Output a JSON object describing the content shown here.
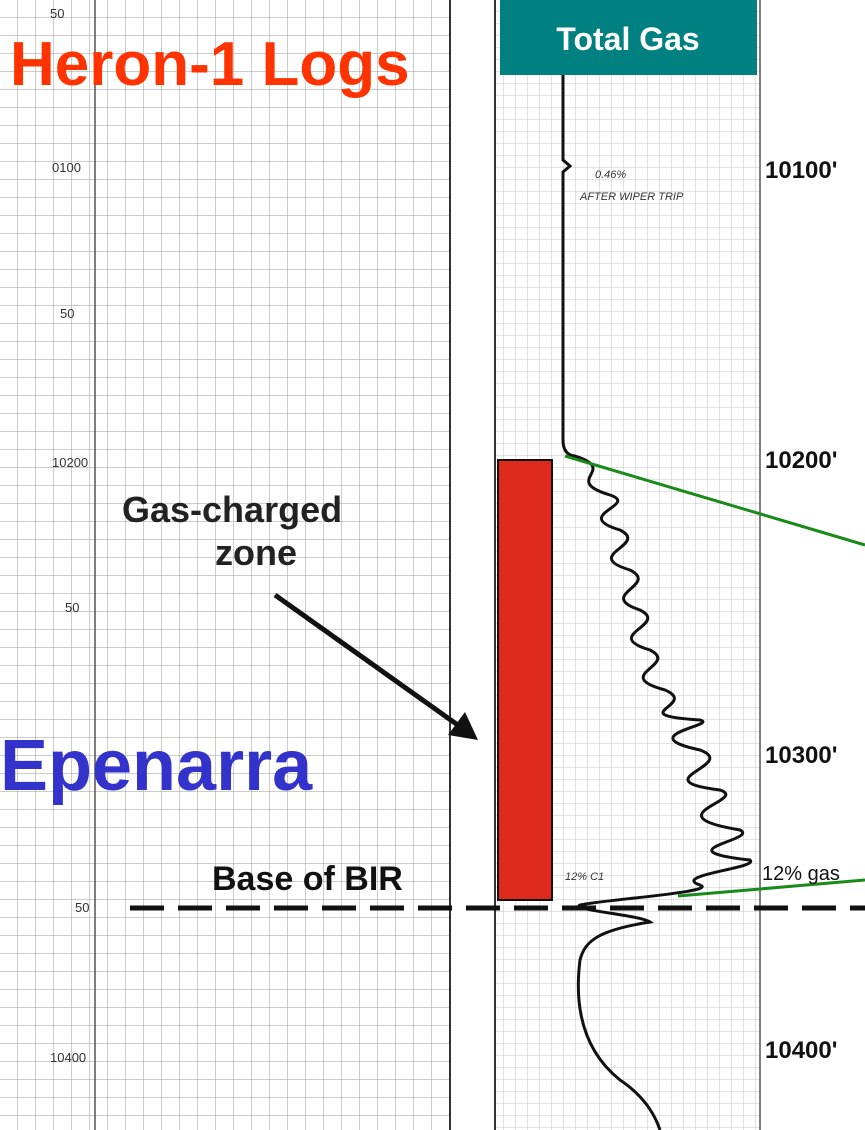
{
  "title": "Heron-1 Logs",
  "track_header": "Total Gas",
  "depth_labels": [
    "10100'",
    "10200'",
    "10300'",
    "10400'"
  ],
  "scan_depth_labels": [
    "50",
    "0100",
    "50",
    "10200",
    "50",
    "50",
    "10400"
  ],
  "annotation_zone": [
    "Gas-charged",
    "zone"
  ],
  "formation": "Epenarra",
  "base_label": "Base of BIR",
  "gas_label": "12% gas",
  "scan_notes": [
    "0.46%",
    "AFTER WIPER TRIP",
    "12% C1"
  ]
}
